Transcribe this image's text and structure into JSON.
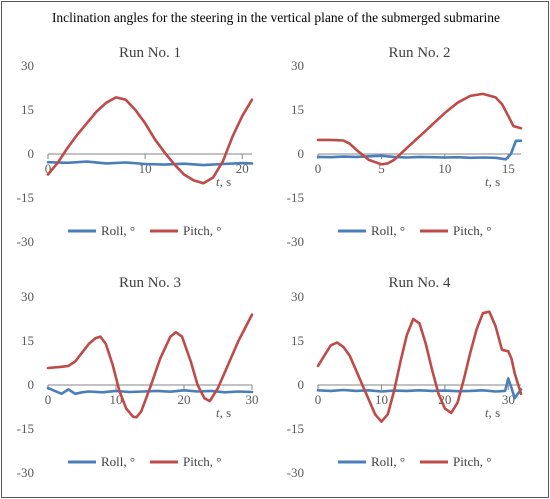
{
  "figure": {
    "title": "Inclination angles for the steering in the vertical plane of the submerged submarine"
  },
  "colors": {
    "roll": "#4a7ebb",
    "pitch": "#be4b48",
    "axis": "#868686",
    "text": "#595959"
  },
  "chart_data": [
    {
      "type": "line",
      "title": "Run No. 1",
      "xlabel": "t, s",
      "ylabel": "",
      "xlim": [
        0,
        21
      ],
      "ylim": [
        -30,
        30
      ],
      "xticks": [
        0,
        10,
        20
      ],
      "yticks": [
        30,
        15,
        0,
        -15,
        -30
      ],
      "legend": "bottom",
      "series": [
        {
          "name": "Roll, °",
          "x": [
            0,
            2,
            4,
            6,
            8,
            10,
            12,
            14,
            16,
            18,
            20,
            21
          ],
          "y": [
            -2.8,
            -3.0,
            -2.6,
            -3.2,
            -2.9,
            -3.4,
            -3.6,
            -3.3,
            -3.8,
            -3.4,
            -3.1,
            -3.2
          ]
        },
        {
          "name": "Pitch, °",
          "x": [
            0,
            1,
            2,
            3,
            4,
            5,
            6,
            7,
            8,
            9,
            10,
            11,
            12,
            13,
            14,
            15,
            16,
            17,
            18,
            19,
            20,
            21
          ],
          "y": [
            -7,
            -3,
            2,
            6.5,
            10.5,
            14.5,
            17.5,
            19.3,
            18.5,
            15,
            10.5,
            5,
            0.5,
            -3.5,
            -7,
            -9,
            -10,
            -8,
            -2.5,
            6,
            13,
            18.5
          ]
        }
      ]
    },
    {
      "type": "line",
      "title": "Run No. 2",
      "xlabel": "t, s",
      "ylabel": "",
      "xlim": [
        0,
        16
      ],
      "ylim": [
        -30,
        30
      ],
      "xticks": [
        0,
        5,
        10,
        15
      ],
      "yticks": [
        30,
        15,
        0,
        -15,
        -30
      ],
      "legend": "bottom",
      "series": [
        {
          "name": "Roll, °",
          "x": [
            0,
            1,
            2,
            3,
            4,
            5,
            6,
            7,
            8,
            9,
            10,
            11,
            12,
            13,
            14,
            14.8,
            15.2,
            15.6,
            16
          ],
          "y": [
            -1,
            -1.1,
            -0.9,
            -1,
            -0.8,
            -0.6,
            -1,
            -1.2,
            -1,
            -1.1,
            -1.2,
            -1.1,
            -1.3,
            -1.2,
            -1.3,
            -1.8,
            0,
            4.5,
            4.5
          ]
        },
        {
          "name": "Pitch, °",
          "x": [
            0,
            1,
            2,
            2.5,
            3,
            4,
            5,
            5.5,
            6,
            7,
            8,
            9,
            10,
            11,
            12,
            13,
            14,
            14.5,
            15,
            15.4,
            16
          ],
          "y": [
            4.8,
            4.8,
            4.6,
            3.5,
            1.5,
            -2,
            -3.5,
            -3.2,
            -2,
            2,
            6,
            10,
            14,
            17.5,
            19.8,
            20.5,
            19.3,
            17,
            13,
            9.5,
            8.8
          ]
        }
      ]
    },
    {
      "type": "line",
      "title": "Run No. 3",
      "xlabel": "t, s",
      "ylabel": "",
      "xlim": [
        0,
        30
      ],
      "ylim": [
        -30,
        30
      ],
      "xticks": [
        0,
        10,
        20,
        30
      ],
      "yticks": [
        30,
        15,
        0,
        -15,
        -30
      ],
      "legend": "bottom",
      "series": [
        {
          "name": "Roll, °",
          "x": [
            0,
            1,
            2,
            3,
            4,
            5,
            6,
            8,
            10,
            12,
            14,
            16,
            18,
            20,
            22,
            24,
            26,
            28,
            30
          ],
          "y": [
            -1,
            -2,
            -3,
            -1.5,
            -3,
            -2.5,
            -2.2,
            -2.5,
            -2,
            -2.4,
            -2.2,
            -2,
            -2.3,
            -1.8,
            -2.2,
            -2,
            -2.5,
            -2.2,
            -2.4
          ]
        },
        {
          "name": "Pitch, °",
          "x": [
            0,
            2,
            3,
            4,
            5,
            6,
            7,
            7.7,
            8.5,
            9.5,
            10.5,
            11.5,
            12.5,
            13,
            13.7,
            15,
            16.5,
            18,
            18.8,
            19.7,
            21,
            22,
            23,
            23.8,
            25,
            26.5,
            28,
            30
          ],
          "y": [
            5.8,
            6.2,
            6.5,
            8,
            11,
            14,
            16,
            16.5,
            14,
            7,
            -2,
            -8,
            -10.8,
            -11,
            -9,
            -1,
            9,
            16.5,
            18,
            16.5,
            8,
            0,
            -4.5,
            -5.5,
            -1,
            7,
            15,
            24
          ]
        }
      ]
    },
    {
      "type": "line",
      "title": "Run No. 4",
      "xlabel": "t, s",
      "ylabel": "",
      "xlim": [
        0,
        32
      ],
      "ylim": [
        -30,
        30
      ],
      "xticks": [
        0,
        10,
        20,
        30
      ],
      "yticks": [
        30,
        15,
        0,
        -15,
        -30
      ],
      "legend": "bottom",
      "series": [
        {
          "name": "Roll, °",
          "x": [
            0,
            2,
            4,
            6,
            8,
            10,
            12,
            14,
            16,
            18,
            20,
            22,
            24,
            26,
            28,
            29.5,
            30,
            30.5,
            31,
            31.5,
            32
          ],
          "y": [
            -1.8,
            -2,
            -1.7,
            -2,
            -1.8,
            -2.2,
            -1.9,
            -2,
            -1.8,
            -2,
            -1.9,
            -2.1,
            -2,
            -1.8,
            -2.2,
            -2,
            2.2,
            -1,
            -4.5,
            -3,
            -1.5
          ]
        },
        {
          "name": "Pitch, °",
          "x": [
            0,
            1,
            2,
            3,
            4,
            5,
            6,
            7,
            8,
            9,
            10,
            11,
            12,
            13,
            14,
            15,
            16,
            17,
            18,
            19,
            20,
            21,
            22,
            23,
            24,
            25,
            26,
            27,
            28,
            29,
            30,
            30.5,
            31,
            32
          ],
          "y": [
            6.5,
            10,
            13.5,
            14.5,
            13,
            10,
            5,
            0,
            -5,
            -10,
            -12.5,
            -10,
            -2,
            8,
            17,
            22.5,
            21,
            14,
            5,
            -3,
            -8,
            -9.5,
            -6,
            2,
            11,
            19,
            24.5,
            25,
            20,
            12,
            11.5,
            9,
            4,
            -3
          ]
        }
      ]
    }
  ]
}
